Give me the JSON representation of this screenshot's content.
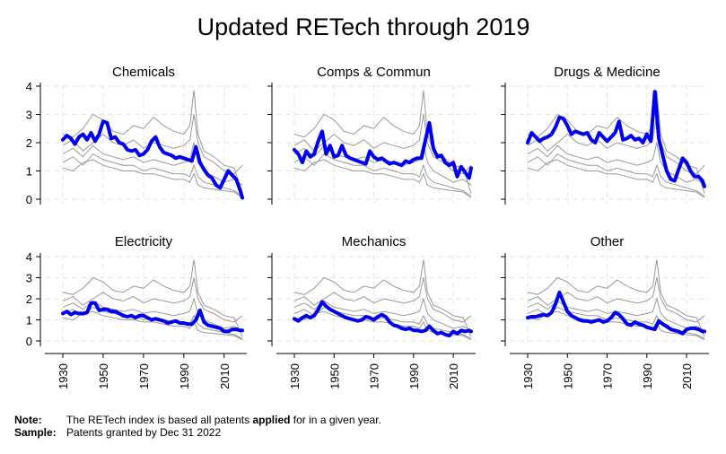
{
  "chart_data": {
    "type": "line",
    "title": "Updated RETech through 2019",
    "xticks": [
      1930,
      1950,
      1970,
      1990,
      2010
    ],
    "yticks": [
      0,
      1,
      2,
      3,
      4
    ],
    "xlim": [
      1930,
      2019
    ],
    "ylim": [
      0,
      4
    ],
    "grid": true,
    "panels": [
      {
        "name": "Chemicals",
        "x": [
          1930,
          1932,
          1934,
          1936,
          1938,
          1940,
          1942,
          1944,
          1946,
          1948,
          1950,
          1952,
          1954,
          1956,
          1958,
          1960,
          1962,
          1964,
          1966,
          1968,
          1970,
          1972,
          1974,
          1976,
          1978,
          1980,
          1982,
          1984,
          1986,
          1988,
          1990,
          1992,
          1994,
          1996,
          1998,
          2000,
          2002,
          2004,
          2006,
          2008,
          2010,
          2012,
          2014,
          2016,
          2018,
          2019
        ],
        "values": [
          2.1,
          2.25,
          2.15,
          1.95,
          2.2,
          2.3,
          2.1,
          2.35,
          2.05,
          2.3,
          2.75,
          2.7,
          2.15,
          2.2,
          2.0,
          1.95,
          1.75,
          1.7,
          1.75,
          1.55,
          1.6,
          1.75,
          2.05,
          2.2,
          1.85,
          1.65,
          1.6,
          1.55,
          1.45,
          1.5,
          1.45,
          1.4,
          1.35,
          1.85,
          1.3,
          1.05,
          0.85,
          0.75,
          0.5,
          0.4,
          0.7,
          1.0,
          0.85,
          0.7,
          0.3,
          0.05
        ]
      },
      {
        "name": "Comps & Commun",
        "x": [
          1930,
          1932,
          1934,
          1936,
          1938,
          1940,
          1942,
          1944,
          1946,
          1948,
          1950,
          1952,
          1954,
          1956,
          1958,
          1960,
          1962,
          1964,
          1966,
          1968,
          1970,
          1972,
          1974,
          1976,
          1978,
          1980,
          1982,
          1984,
          1986,
          1988,
          1990,
          1992,
          1994,
          1996,
          1998,
          2000,
          2002,
          2004,
          2006,
          2008,
          2010,
          2012,
          2014,
          2016,
          2018,
          2019
        ],
        "values": [
          1.75,
          1.6,
          1.3,
          1.7,
          1.5,
          1.6,
          2.05,
          2.4,
          1.6,
          1.9,
          1.5,
          1.55,
          1.9,
          1.55,
          1.45,
          1.4,
          1.35,
          1.3,
          1.25,
          1.7,
          1.5,
          1.4,
          1.45,
          1.35,
          1.25,
          1.3,
          1.25,
          1.2,
          1.35,
          1.3,
          1.4,
          1.45,
          1.45,
          2.1,
          2.7,
          1.8,
          1.5,
          1.55,
          1.3,
          1.2,
          1.3,
          0.8,
          1.15,
          0.95,
          0.75,
          1.1
        ]
      },
      {
        "name": "Drugs & Medicine",
        "x": [
          1930,
          1932,
          1934,
          1936,
          1938,
          1940,
          1942,
          1944,
          1946,
          1948,
          1950,
          1952,
          1954,
          1956,
          1958,
          1960,
          1962,
          1964,
          1966,
          1968,
          1970,
          1972,
          1974,
          1976,
          1978,
          1980,
          1982,
          1984,
          1986,
          1988,
          1990,
          1992,
          1994,
          1996,
          1998,
          2000,
          2002,
          2004,
          2006,
          2008,
          2010,
          2012,
          2014,
          2016,
          2018,
          2019
        ],
        "values": [
          2.0,
          2.35,
          2.2,
          2.05,
          2.15,
          2.2,
          2.3,
          2.55,
          2.9,
          2.85,
          2.6,
          2.3,
          2.4,
          2.35,
          2.3,
          2.35,
          2.1,
          2.0,
          2.35,
          2.2,
          2.05,
          2.2,
          2.35,
          2.75,
          2.1,
          2.15,
          2.25,
          2.1,
          2.15,
          2.0,
          2.3,
          2.05,
          3.8,
          2.15,
          1.55,
          1.0,
          0.7,
          0.65,
          1.05,
          1.45,
          1.3,
          1.0,
          0.8,
          0.8,
          0.65,
          0.45
        ]
      },
      {
        "name": "Electricity",
        "x": [
          1930,
          1932,
          1934,
          1936,
          1938,
          1940,
          1942,
          1944,
          1946,
          1948,
          1950,
          1952,
          1954,
          1956,
          1958,
          1960,
          1962,
          1964,
          1966,
          1968,
          1970,
          1972,
          1974,
          1976,
          1978,
          1980,
          1982,
          1984,
          1986,
          1988,
          1990,
          1992,
          1994,
          1996,
          1998,
          2000,
          2002,
          2004,
          2006,
          2008,
          2010,
          2012,
          2014,
          2016,
          2018,
          2019
        ],
        "values": [
          1.3,
          1.4,
          1.25,
          1.35,
          1.3,
          1.3,
          1.35,
          1.8,
          1.8,
          1.45,
          1.5,
          1.5,
          1.4,
          1.4,
          1.3,
          1.2,
          1.15,
          1.2,
          1.1,
          1.2,
          1.2,
          1.1,
          1.0,
          1.05,
          1.0,
          0.95,
          0.85,
          0.9,
          0.95,
          0.85,
          0.85,
          0.8,
          0.8,
          1.0,
          1.45,
          0.9,
          0.75,
          0.7,
          0.65,
          0.6,
          0.45,
          0.45,
          0.55,
          0.55,
          0.5,
          0.5
        ]
      },
      {
        "name": "Mechanics",
        "x": [
          1930,
          1932,
          1934,
          1936,
          1938,
          1940,
          1942,
          1944,
          1946,
          1948,
          1950,
          1952,
          1954,
          1956,
          1958,
          1960,
          1962,
          1964,
          1966,
          1968,
          1970,
          1972,
          1974,
          1976,
          1978,
          1980,
          1982,
          1984,
          1986,
          1988,
          1990,
          1992,
          1994,
          1996,
          1998,
          2000,
          2002,
          2004,
          2006,
          2008,
          2010,
          2012,
          2014,
          2016,
          2018,
          2019
        ],
        "values": [
          1.05,
          0.95,
          1.1,
          1.2,
          1.1,
          1.2,
          1.5,
          1.85,
          1.65,
          1.5,
          1.4,
          1.3,
          1.2,
          1.1,
          1.05,
          1.0,
          0.95,
          1.0,
          1.15,
          1.1,
          1.0,
          1.15,
          1.25,
          1.15,
          0.9,
          0.75,
          0.7,
          0.6,
          0.55,
          0.6,
          0.5,
          0.5,
          0.45,
          0.5,
          0.7,
          0.5,
          0.35,
          0.4,
          0.3,
          0.25,
          0.45,
          0.35,
          0.5,
          0.45,
          0.5,
          0.45
        ]
      },
      {
        "name": "Other",
        "x": [
          1930,
          1932,
          1934,
          1936,
          1938,
          1940,
          1942,
          1944,
          1946,
          1948,
          1950,
          1952,
          1954,
          1956,
          1958,
          1960,
          1962,
          1964,
          1966,
          1968,
          1970,
          1972,
          1974,
          1976,
          1978,
          1980,
          1982,
          1984,
          1986,
          1988,
          1990,
          1992,
          1994,
          1996,
          1998,
          2000,
          2002,
          2004,
          2006,
          2008,
          2010,
          2012,
          2014,
          2016,
          2018,
          2019
        ],
        "values": [
          1.1,
          1.15,
          1.15,
          1.2,
          1.25,
          1.2,
          1.35,
          1.75,
          2.3,
          1.85,
          1.4,
          1.2,
          1.1,
          1.0,
          0.95,
          0.95,
          0.9,
          0.95,
          1.0,
          0.9,
          0.95,
          1.1,
          1.35,
          1.25,
          1.05,
          0.8,
          0.75,
          0.9,
          0.8,
          0.75,
          0.65,
          0.6,
          0.55,
          0.95,
          0.8,
          0.7,
          0.55,
          0.5,
          0.45,
          0.35,
          0.55,
          0.6,
          0.6,
          0.55,
          0.45,
          0.45
        ]
      }
    ],
    "background_lines": [
      {
        "x": [
          1930,
          1935,
          1940,
          1945,
          1950,
          1955,
          1960,
          1965,
          1970,
          1975,
          1980,
          1985,
          1990,
          1993,
          1995,
          1997,
          2000,
          2005,
          2010,
          2015,
          2019
        ],
        "values": [
          2.3,
          2.2,
          2.5,
          3.0,
          2.8,
          2.4,
          2.3,
          2.6,
          2.5,
          2.9,
          2.6,
          2.4,
          2.3,
          2.6,
          3.85,
          2.3,
          1.7,
          1.5,
          1.2,
          1.1,
          0.2
        ]
      },
      {
        "x": [
          1930,
          1935,
          1940,
          1945,
          1950,
          1955,
          1960,
          1965,
          1970,
          1975,
          1980,
          1985,
          1990,
          1993,
          1995,
          1997,
          2000,
          2005,
          2010,
          2015,
          2019
        ],
        "values": [
          1.9,
          2.1,
          1.7,
          2.0,
          2.3,
          2.0,
          1.9,
          2.1,
          1.8,
          2.0,
          1.9,
          1.8,
          1.9,
          2.1,
          3.0,
          2.0,
          1.5,
          1.3,
          1.0,
          0.9,
          1.2
        ]
      },
      {
        "x": [
          1930,
          1935,
          1940,
          1945,
          1950,
          1955,
          1960,
          1965,
          1970,
          1975,
          1980,
          1985,
          1990,
          1993,
          1995,
          1997,
          2000,
          2005,
          2010,
          2015,
          2019
        ],
        "values": [
          1.6,
          1.8,
          1.5,
          1.9,
          1.6,
          1.5,
          1.4,
          1.5,
          1.3,
          1.4,
          1.3,
          1.2,
          1.3,
          1.4,
          2.0,
          1.3,
          1.0,
          0.8,
          0.6,
          0.7,
          0.5
        ]
      },
      {
        "x": [
          1930,
          1935,
          1940,
          1945,
          1950,
          1955,
          1960,
          1965,
          1970,
          1975,
          1980,
          1985,
          1990,
          1993,
          1995,
          1997,
          2000,
          2005,
          2010,
          2015,
          2019
        ],
        "values": [
          1.3,
          1.5,
          1.2,
          1.6,
          1.4,
          1.3,
          1.2,
          1.2,
          1.0,
          1.1,
          1.0,
          0.9,
          0.9,
          0.8,
          1.2,
          0.8,
          0.6,
          0.5,
          0.4,
          0.3,
          0.1
        ]
      },
      {
        "x": [
          1930,
          1935,
          1940,
          1945,
          1950,
          1955,
          1960,
          1965,
          1970,
          1975,
          1980,
          1985,
          1990,
          1993,
          1995,
          1997,
          2000,
          2005,
          2010,
          2015,
          2019
        ],
        "values": [
          1.1,
          1.0,
          1.3,
          1.4,
          1.2,
          1.1,
          1.0,
          1.0,
          0.9,
          0.9,
          0.8,
          0.7,
          0.7,
          0.6,
          0.9,
          0.5,
          0.4,
          0.35,
          0.3,
          0.25,
          0.05
        ]
      }
    ],
    "colors": {
      "highlight": "#0000ee",
      "background": "#999999",
      "grid": "#e6e6e6"
    }
  },
  "notes": {
    "note_label": "Note:",
    "note_text_before": "The RETech index is based all patents ",
    "note_text_bold": "applied",
    "note_text_after": " for in a given year.",
    "sample_label": "Sample:",
    "sample_text": "Patents granted by Dec 31 2022"
  }
}
